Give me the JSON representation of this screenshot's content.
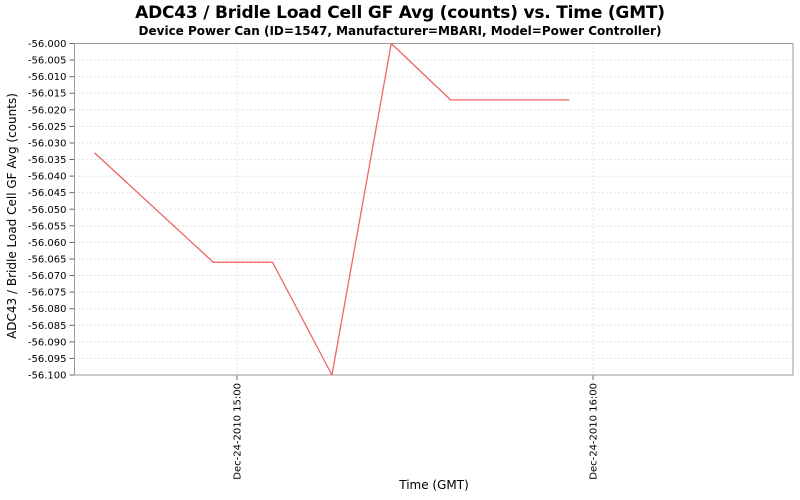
{
  "chart_data": {
    "type": "line",
    "title": "ADC43 / Bridle Load Cell GF Avg (counts) vs. Time (GMT)",
    "subtitle": "Device Power Can (ID=1547, Manufacturer=MBARI, Model=Power Controller)",
    "xlabel": "Time (GMT)",
    "ylabel": "ADC43 / Bridle Load Cell GF Avg (counts)",
    "legend": "none",
    "grid": "dotted",
    "y_axis": {
      "min": -56.1,
      "max": -56.0,
      "tick_step": 0.005,
      "tick_labels": [
        "-56.000",
        "-56.005",
        "-56.010",
        "-56.015",
        "-56.020",
        "-56.025",
        "-56.030",
        "-56.035",
        "-56.040",
        "-56.045",
        "-56.050",
        "-56.055",
        "-56.060",
        "-56.065",
        "-56.070",
        "-56.075",
        "-56.080",
        "-56.085",
        "-56.090",
        "-56.095",
        "-56.100"
      ]
    },
    "x_axis": {
      "unit": "minutes relative to Dec-24-2010 15:00 GMT",
      "ticks": [
        {
          "label": "Dec-24-2010 15:00",
          "minutes": 0
        },
        {
          "label": "Dec-24-2010 16:00",
          "minutes": 60
        }
      ]
    },
    "series": [
      {
        "name": "ADC43 / Bridle Load Cell GF Avg",
        "color": "#ee6666",
        "points": [
          {
            "minutes": -24,
            "value": -56.033
          },
          {
            "minutes": -4,
            "value": -56.066
          },
          {
            "minutes": 6,
            "value": -56.066
          },
          {
            "minutes": 16,
            "value": -56.1
          },
          {
            "minutes": 26,
            "value": -56.0
          },
          {
            "minutes": 36,
            "value": -56.017
          },
          {
            "minutes": 56,
            "value": -56.017
          }
        ]
      }
    ]
  },
  "colors": {
    "line": "#ee6666",
    "grid": "#cccccc",
    "axis_border": "#999999",
    "tick": "#666666",
    "text": "#000000",
    "background": "#ffffff"
  }
}
